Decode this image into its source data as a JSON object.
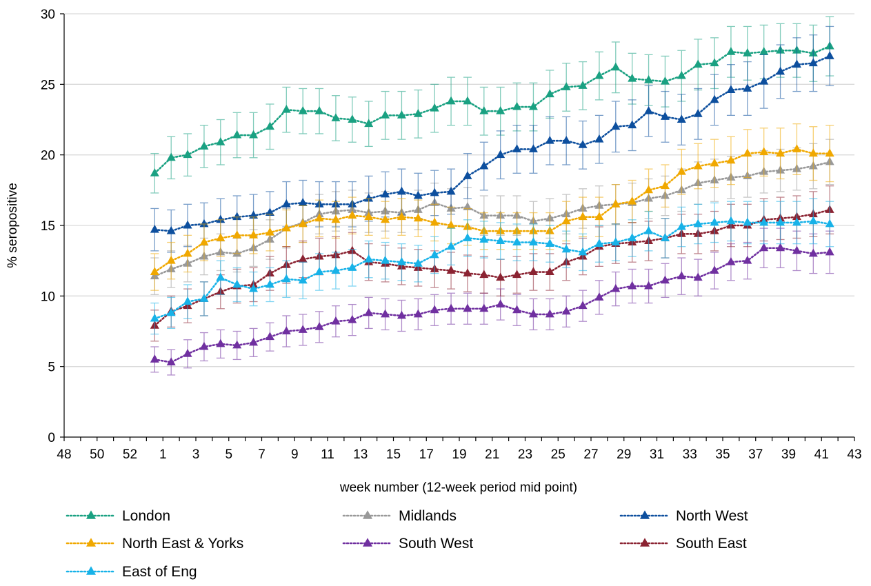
{
  "chart_data": {
    "type": "line",
    "ylabel": "% seropositive",
    "xlabel": "week number  (12-week period mid point)",
    "ylim": [
      0,
      30
    ],
    "y_ticks": [
      0,
      5,
      10,
      15,
      20,
      25,
      30
    ],
    "x_tick_labels": [
      "48",
      "50",
      "52",
      "1",
      "3",
      "5",
      "7",
      "9",
      "11",
      "13",
      "15",
      "17",
      "19",
      "21",
      "23",
      "25",
      "27",
      "29",
      "31",
      "33",
      "35",
      "37",
      "39",
      "41",
      "43"
    ],
    "x_point_labels": [
      "53",
      "1",
      "2",
      "3",
      "4",
      "5",
      "6",
      "7",
      "8",
      "9",
      "10",
      "11",
      "12",
      "13",
      "14",
      "15",
      "16",
      "17",
      "18",
      "19",
      "20",
      "21",
      "22",
      "23",
      "24",
      "25",
      "26",
      "27",
      "28",
      "29",
      "30",
      "31",
      "32",
      "33",
      "34",
      "35",
      "36",
      "37",
      "38",
      "39",
      "40",
      "41"
    ],
    "grid": "horizontal",
    "legend_position": "bottom",
    "series": [
      {
        "name": "London",
        "color": "#1aa182",
        "values": [
          18.7,
          19.8,
          20.0,
          20.6,
          20.9,
          21.4,
          21.4,
          22.0,
          23.2,
          23.1,
          23.1,
          22.6,
          22.5,
          22.2,
          22.8,
          22.8,
          22.9,
          23.3,
          23.8,
          23.8,
          23.1,
          23.1,
          23.4,
          23.4,
          24.3,
          24.8,
          24.9,
          25.6,
          26.2,
          25.4,
          25.3,
          25.2,
          25.6,
          26.4,
          26.5,
          27.3,
          27.2,
          27.3,
          27.4,
          27.4,
          27.2,
          27.7
        ],
        "errors": [
          1.4,
          1.5,
          1.5,
          1.5,
          1.6,
          1.6,
          1.6,
          1.6,
          1.6,
          1.6,
          1.6,
          1.6,
          1.6,
          1.6,
          1.7,
          1.7,
          1.7,
          1.7,
          1.7,
          1.7,
          1.7,
          1.7,
          1.7,
          1.7,
          1.7,
          1.7,
          1.7,
          1.7,
          1.8,
          1.8,
          1.8,
          1.8,
          1.8,
          1.8,
          1.8,
          1.8,
          1.9,
          1.9,
          1.9,
          1.9,
          2.0,
          2.1
        ]
      },
      {
        "name": "Midlands",
        "color": "#999999",
        "values": [
          11.4,
          11.9,
          12.3,
          12.8,
          13.1,
          13.0,
          13.4,
          14.0,
          14.8,
          15.2,
          15.8,
          16.0,
          16.1,
          15.9,
          16.0,
          15.9,
          16.1,
          16.6,
          16.2,
          16.3,
          15.7,
          15.7,
          15.7,
          15.3,
          15.5,
          15.8,
          16.2,
          16.4,
          16.5,
          16.6,
          16.9,
          17.1,
          17.5,
          18.0,
          18.2,
          18.4,
          18.5,
          18.8,
          18.9,
          19.0,
          19.2,
          19.5
        ],
        "errors": [
          1.3,
          1.3,
          1.3,
          1.3,
          1.3,
          1.3,
          1.3,
          1.4,
          1.4,
          1.4,
          1.4,
          1.4,
          1.4,
          1.4,
          1.4,
          1.4,
          1.4,
          1.4,
          1.4,
          1.4,
          1.4,
          1.4,
          1.4,
          1.4,
          1.4,
          1.4,
          1.4,
          1.4,
          1.4,
          1.4,
          1.4,
          1.4,
          1.5,
          1.5,
          1.5,
          1.5,
          1.5,
          1.5,
          1.5,
          1.5,
          1.6,
          1.6
        ]
      },
      {
        "name": "North West",
        "color": "#0d4f9e",
        "values": [
          14.7,
          14.6,
          15.0,
          15.1,
          15.4,
          15.6,
          15.7,
          15.9,
          16.5,
          16.6,
          16.5,
          16.5,
          16.5,
          16.9,
          17.2,
          17.4,
          17.1,
          17.3,
          17.4,
          18.5,
          19.2,
          20.0,
          20.4,
          20.4,
          21.0,
          21.0,
          20.7,
          21.1,
          22.0,
          22.1,
          23.1,
          22.7,
          22.5,
          22.9,
          23.9,
          24.6,
          24.7,
          25.2,
          25.9,
          26.4,
          26.5,
          27.0
        ],
        "errors": [
          1.5,
          1.5,
          1.5,
          1.5,
          1.5,
          1.5,
          1.5,
          1.5,
          1.6,
          1.6,
          1.6,
          1.6,
          1.6,
          1.6,
          1.6,
          1.6,
          1.6,
          1.6,
          1.6,
          1.6,
          1.7,
          1.7,
          1.7,
          1.7,
          1.7,
          1.7,
          1.7,
          1.7,
          1.8,
          1.8,
          1.8,
          1.8,
          1.8,
          1.8,
          1.8,
          1.8,
          1.9,
          1.9,
          1.9,
          1.9,
          2.0,
          2.1
        ]
      },
      {
        "name": "North East & Yorks",
        "color": "#f0a800",
        "values": [
          11.7,
          12.5,
          13.0,
          13.8,
          14.1,
          14.3,
          14.3,
          14.5,
          14.8,
          15.1,
          15.5,
          15.4,
          15.7,
          15.6,
          15.4,
          15.6,
          15.5,
          15.2,
          15.0,
          14.9,
          14.6,
          14.6,
          14.6,
          14.6,
          14.6,
          15.3,
          15.6,
          15.6,
          16.5,
          16.7,
          17.5,
          17.8,
          18.8,
          19.2,
          19.4,
          19.6,
          20.1,
          20.2,
          20.1,
          20.4,
          20.1,
          20.1
        ],
        "errors": [
          1.3,
          1.3,
          1.3,
          1.3,
          1.3,
          1.3,
          1.3,
          1.3,
          1.3,
          1.3,
          1.3,
          1.3,
          1.3,
          1.3,
          1.3,
          1.3,
          1.3,
          1.3,
          1.3,
          1.3,
          1.3,
          1.3,
          1.3,
          1.3,
          1.3,
          1.4,
          1.4,
          1.4,
          1.4,
          1.5,
          1.5,
          1.5,
          1.6,
          1.6,
          1.7,
          1.7,
          1.7,
          1.7,
          1.8,
          1.8,
          1.9,
          2.0
        ]
      },
      {
        "name": "South West",
        "color": "#7030a0",
        "values": [
          5.5,
          5.3,
          5.9,
          6.4,
          6.6,
          6.5,
          6.7,
          7.1,
          7.5,
          7.6,
          7.8,
          8.2,
          8.3,
          8.8,
          8.7,
          8.6,
          8.7,
          9.0,
          9.1,
          9.1,
          9.1,
          9.4,
          9.0,
          8.7,
          8.7,
          8.9,
          9.3,
          9.9,
          10.5,
          10.7,
          10.7,
          11.1,
          11.4,
          11.3,
          11.8,
          12.4,
          12.5,
          13.4,
          13.4,
          13.2,
          13.0,
          13.1
        ],
        "errors": [
          0.9,
          0.9,
          1.0,
          1.0,
          1.0,
          1.0,
          1.0,
          1.0,
          1.1,
          1.1,
          1.1,
          1.1,
          1.1,
          1.1,
          1.1,
          1.1,
          1.1,
          1.1,
          1.1,
          1.1,
          1.1,
          1.1,
          1.1,
          1.1,
          1.1,
          1.1,
          1.1,
          1.2,
          1.2,
          1.2,
          1.2,
          1.2,
          1.3,
          1.3,
          1.3,
          1.3,
          1.3,
          1.4,
          1.4,
          1.4,
          1.4,
          1.5
        ]
      },
      {
        "name": "South East",
        "color": "#8b2332",
        "values": [
          7.9,
          8.9,
          9.3,
          9.8,
          10.3,
          10.7,
          10.8,
          11.6,
          12.2,
          12.6,
          12.8,
          12.9,
          13.2,
          12.4,
          12.3,
          12.1,
          12.0,
          11.9,
          11.8,
          11.6,
          11.5,
          11.3,
          11.5,
          11.7,
          11.7,
          12.4,
          12.8,
          13.5,
          13.7,
          13.8,
          13.9,
          14.1,
          14.4,
          14.4,
          14.6,
          15.0,
          15.0,
          15.4,
          15.5,
          15.6,
          15.8,
          16.1
        ],
        "errors": [
          1.1,
          1.1,
          1.2,
          1.2,
          1.2,
          1.2,
          1.2,
          1.2,
          1.3,
          1.3,
          1.3,
          1.3,
          1.3,
          1.3,
          1.3,
          1.3,
          1.3,
          1.3,
          1.3,
          1.3,
          1.3,
          1.3,
          1.3,
          1.3,
          1.3,
          1.3,
          1.3,
          1.4,
          1.4,
          1.4,
          1.4,
          1.4,
          1.4,
          1.4,
          1.4,
          1.5,
          1.5,
          1.5,
          1.5,
          1.5,
          1.6,
          1.7
        ]
      },
      {
        "name": "East of Eng",
        "color": "#17b2e8",
        "values": [
          8.4,
          8.8,
          9.6,
          9.8,
          11.3,
          10.8,
          10.5,
          10.8,
          11.2,
          11.1,
          11.7,
          11.8,
          12.0,
          12.6,
          12.5,
          12.4,
          12.3,
          12.9,
          13.5,
          14.1,
          14.0,
          13.9,
          13.8,
          13.8,
          13.7,
          13.3,
          13.1,
          13.7,
          13.8,
          14.1,
          14.6,
          14.1,
          14.9,
          15.1,
          15.2,
          15.3,
          15.2,
          15.2,
          15.2,
          15.2,
          15.3,
          15.1
        ],
        "errors": [
          1.1,
          1.1,
          1.2,
          1.2,
          1.2,
          1.2,
          1.2,
          1.2,
          1.3,
          1.3,
          1.3,
          1.3,
          1.3,
          1.3,
          1.3,
          1.3,
          1.3,
          1.3,
          1.3,
          1.3,
          1.3,
          1.3,
          1.3,
          1.3,
          1.3,
          1.3,
          1.3,
          1.3,
          1.3,
          1.3,
          1.4,
          1.4,
          1.4,
          1.4,
          1.4,
          1.4,
          1.5,
          1.5,
          1.5,
          1.5,
          1.6,
          1.6
        ]
      }
    ]
  }
}
